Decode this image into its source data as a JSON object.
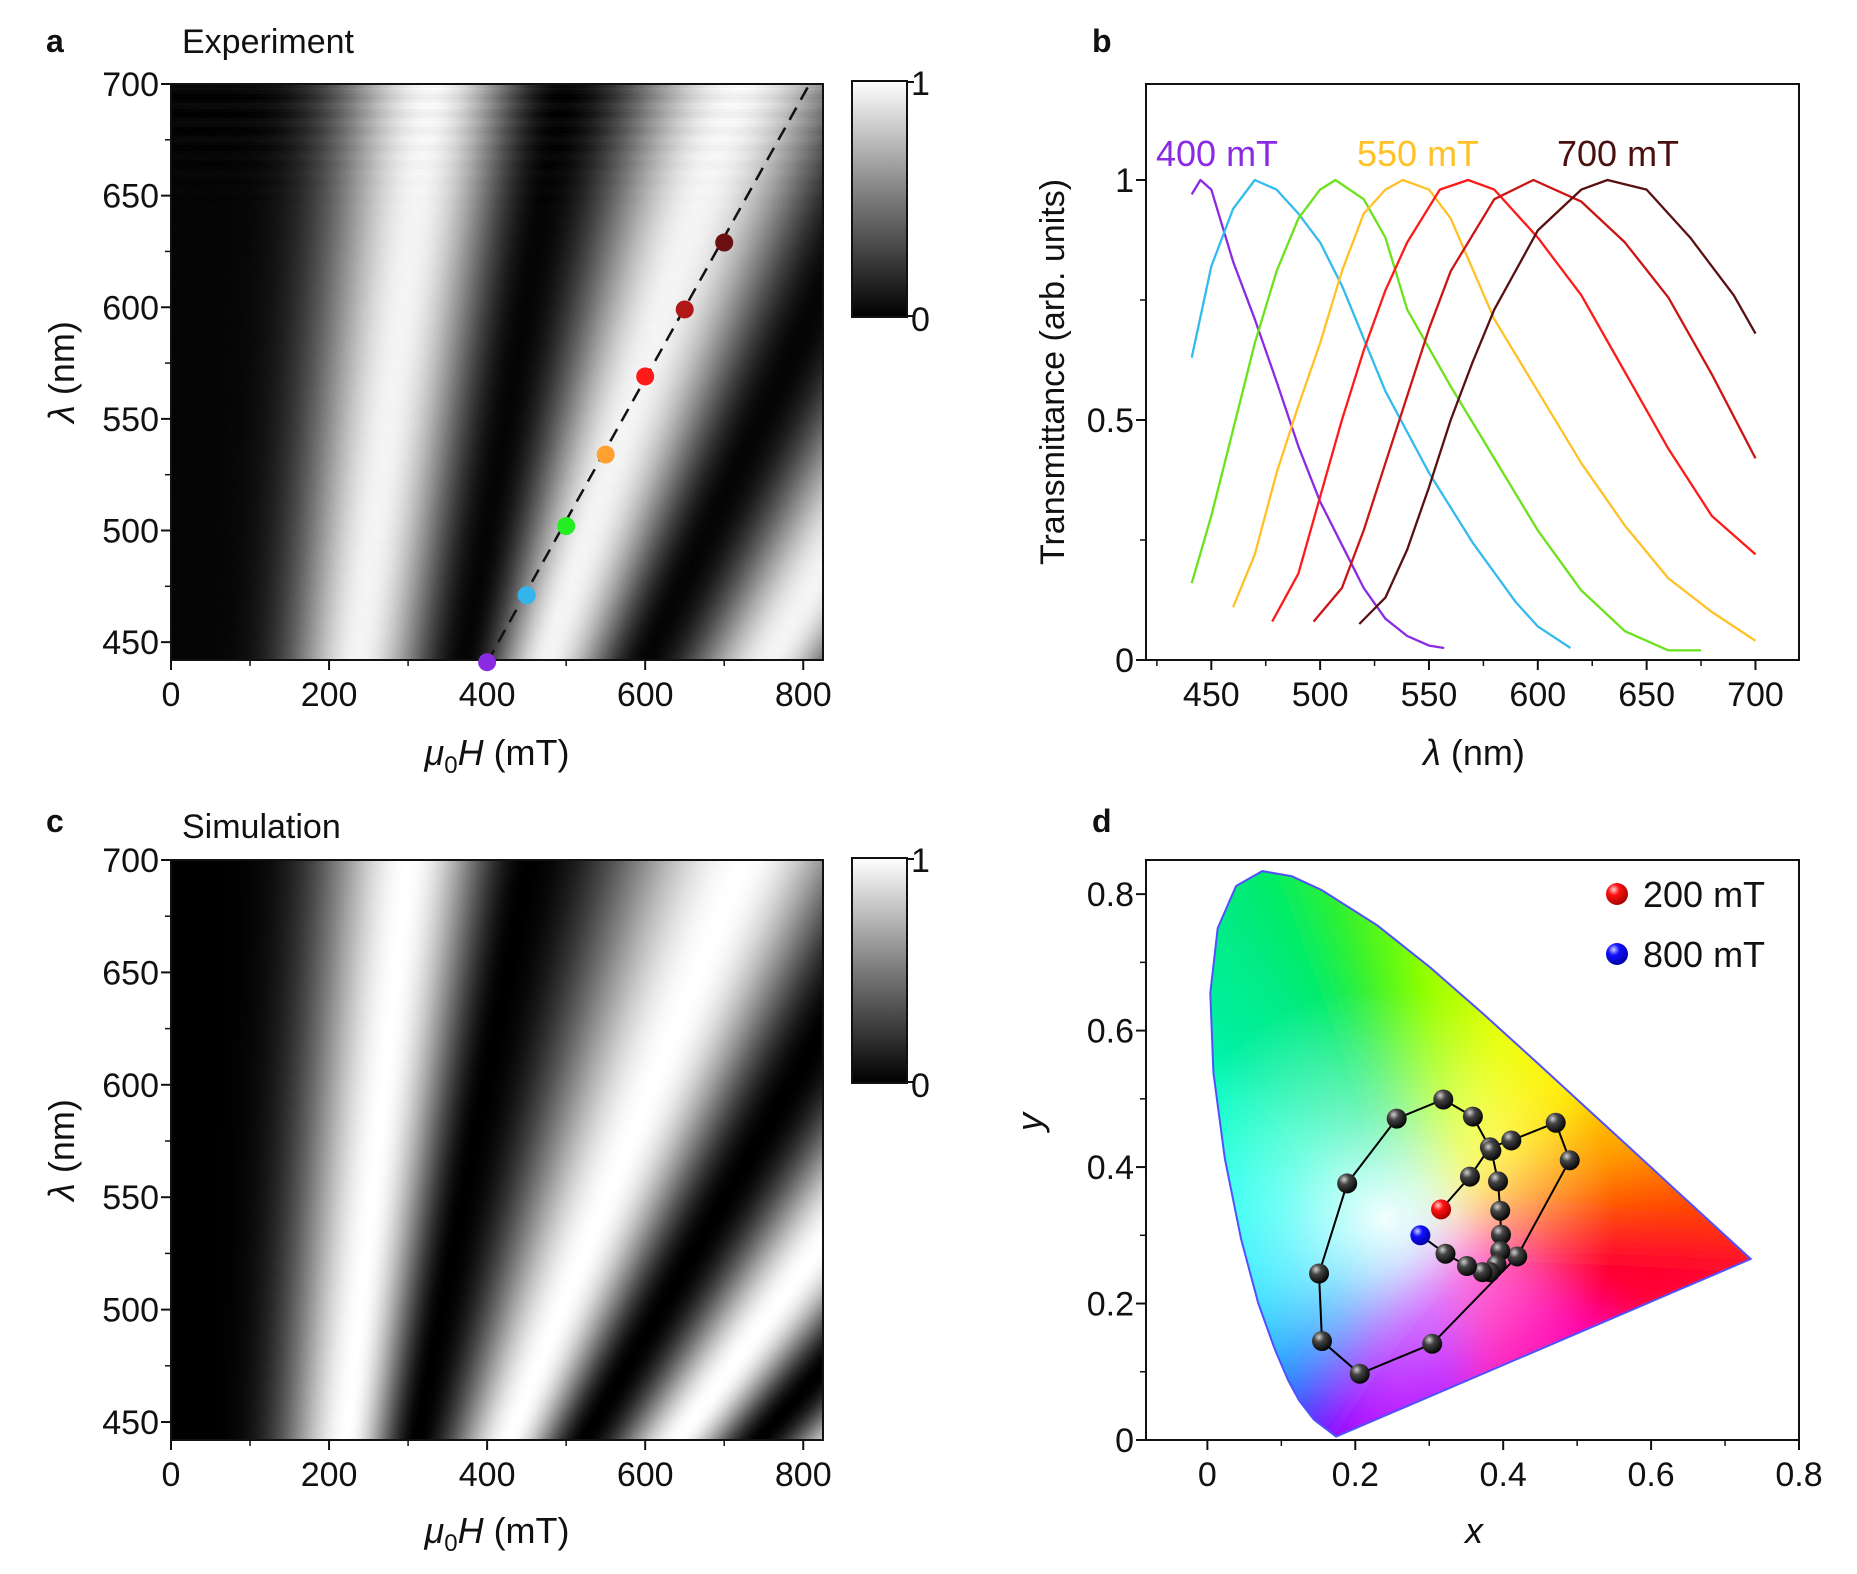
{
  "chart_data": [
    {
      "panel": "a",
      "type": "heatmap",
      "title": "Experiment",
      "xlabel": {
        "mu": "μ",
        "sub": "0",
        "var": "H",
        "unit": " (mT)"
      },
      "ylabel": {
        "var": "λ",
        "unit": " (nm)"
      },
      "xlim": [
        0,
        825
      ],
      "ylim": [
        442,
        700
      ],
      "xticks": [
        "0",
        "200",
        "400",
        "600",
        "800"
      ],
      "yticks": [
        "450",
        "500",
        "550",
        "600",
        "650",
        "700"
      ],
      "colormap": "grayscale",
      "colorbar": {
        "min": 0,
        "max": 1,
        "min_label": "0",
        "max_label": "1"
      },
      "dashed_line": {
        "from": [
          400,
          441
        ],
        "to": [
          808,
          700
        ]
      },
      "markers": [
        {
          "x": 400,
          "y": 441,
          "color": "#8a2be2"
        },
        {
          "x": 450,
          "y": 471,
          "color": "#33b4ea"
        },
        {
          "x": 500,
          "y": 502,
          "color": "#22ee22"
        },
        {
          "x": 550,
          "y": 534,
          "color": "#ffa030"
        },
        {
          "x": 600,
          "y": 569,
          "color": "#ff1a1a"
        },
        {
          "x": 650,
          "y": 599,
          "color": "#b01818"
        },
        {
          "x": 700,
          "y": 629,
          "color": "#6a1010"
        }
      ]
    },
    {
      "panel": "b",
      "type": "line",
      "xlabel": {
        "var": "λ",
        "unit": " (nm)"
      },
      "ylabel": "Transmittance (arb. units)",
      "xlim": [
        420,
        720
      ],
      "ylim": [
        0,
        1.2
      ],
      "xticks": [
        "450",
        "500",
        "550",
        "600",
        "650",
        "700"
      ],
      "yticks": [
        "0",
        "0.5",
        "1"
      ],
      "grid": false,
      "annotations": [
        {
          "text": "400 mT",
          "color": "#8a2be2"
        },
        {
          "text": "550 mT",
          "color": "#ffc125"
        },
        {
          "text": "700 mT",
          "color": "#4a1010"
        }
      ],
      "series": [
        {
          "color": "#8a2be2",
          "x": [
            441,
            445,
            450,
            460,
            470,
            480,
            490,
            500,
            510,
            520,
            530,
            540,
            550,
            557
          ],
          "y": [
            0.97,
            1.0,
            0.98,
            0.83,
            0.71,
            0.58,
            0.445,
            0.33,
            0.24,
            0.15,
            0.086,
            0.05,
            0.03,
            0.025
          ]
        },
        {
          "color": "#33bbee",
          "x": [
            441,
            450,
            460,
            470,
            480,
            490,
            500,
            510,
            530,
            550,
            570,
            590,
            600,
            615
          ],
          "y": [
            0.63,
            0.82,
            0.94,
            1.0,
            0.98,
            0.93,
            0.87,
            0.78,
            0.56,
            0.39,
            0.245,
            0.12,
            0.07,
            0.025
          ]
        },
        {
          "color": "#6be21b",
          "x": [
            441,
            450,
            460,
            470,
            480,
            490,
            500,
            507,
            520,
            530,
            540,
            560,
            580,
            600,
            620,
            640,
            660,
            675
          ],
          "y": [
            0.16,
            0.3,
            0.48,
            0.66,
            0.81,
            0.92,
            0.98,
            1.0,
            0.96,
            0.88,
            0.73,
            0.57,
            0.42,
            0.27,
            0.145,
            0.06,
            0.02,
            0.02
          ]
        },
        {
          "color": "#ffc125",
          "x": [
            460,
            470,
            480,
            490,
            500,
            510,
            520,
            530,
            538,
            550,
            560,
            580,
            600,
            620,
            640,
            660,
            680,
            700
          ],
          "y": [
            0.11,
            0.22,
            0.39,
            0.53,
            0.66,
            0.81,
            0.93,
            0.98,
            1.0,
            0.98,
            0.92,
            0.71,
            0.56,
            0.41,
            0.28,
            0.17,
            0.1,
            0.04
          ]
        },
        {
          "color": "#ff1a1a",
          "x": [
            478,
            490,
            500,
            510,
            520,
            530,
            540,
            555,
            568,
            580,
            600,
            620,
            640,
            660,
            680,
            700
          ],
          "y": [
            0.08,
            0.18,
            0.34,
            0.5,
            0.645,
            0.77,
            0.87,
            0.98,
            1.0,
            0.98,
            0.88,
            0.76,
            0.6,
            0.44,
            0.3,
            0.22
          ]
        },
        {
          "color": "#cc1414",
          "x": [
            497,
            510,
            520,
            530,
            540,
            550,
            560,
            580,
            598,
            620,
            640,
            660,
            680,
            700
          ],
          "y": [
            0.08,
            0.15,
            0.27,
            0.41,
            0.55,
            0.69,
            0.81,
            0.96,
            1.0,
            0.955,
            0.87,
            0.755,
            0.595,
            0.42
          ]
        },
        {
          "color": "#5a1010",
          "x": [
            518,
            530,
            540,
            550,
            560,
            570,
            580,
            600,
            620,
            632,
            650,
            670,
            690,
            700
          ],
          "y": [
            0.075,
            0.13,
            0.23,
            0.36,
            0.5,
            0.62,
            0.73,
            0.895,
            0.98,
            1.0,
            0.98,
            0.88,
            0.76,
            0.68
          ]
        }
      ]
    },
    {
      "panel": "c",
      "type": "heatmap",
      "title": "Simulation",
      "xlabel": {
        "mu": "μ",
        "sub": "0",
        "var": "H",
        "unit": " (mT)"
      },
      "ylabel": {
        "var": "λ",
        "unit": " (nm)"
      },
      "xlim": [
        0,
        825
      ],
      "ylim": [
        442,
        700
      ],
      "xticks": [
        "0",
        "200",
        "400",
        "600",
        "800"
      ],
      "yticks": [
        "450",
        "500",
        "550",
        "600",
        "650",
        "700"
      ],
      "colormap": "grayscale",
      "colorbar": {
        "min": 0,
        "max": 1,
        "min_label": "0",
        "max_label": "1"
      }
    },
    {
      "panel": "d",
      "type": "scatter",
      "xlabel": "x",
      "ylabel": "y",
      "xlim": [
        -0.083,
        0.8
      ],
      "ylim": [
        0,
        0.85
      ],
      "xticks": [
        "0",
        "0.2",
        "0.4",
        "0.6",
        "0.8"
      ],
      "yticks": [
        "0",
        "0.2",
        "0.4",
        "0.6",
        "0.8"
      ],
      "legend": {
        "position": "top-right",
        "entries": [
          {
            "label": "200 mT",
            "color": "#ff0000"
          },
          {
            "label": "800 mT",
            "color": "#0000ff"
          }
        ]
      },
      "start_point": {
        "x": 0.316,
        "y": 0.338,
        "label": "200 mT"
      },
      "end_point": {
        "x": 0.288,
        "y": 0.3,
        "label": "800 mT"
      },
      "path": {
        "x": [
          0.316,
          0.355,
          0.382,
          0.411,
          0.471,
          0.49,
          0.419,
          0.304,
          0.206,
          0.155,
          0.151,
          0.189,
          0.256,
          0.319,
          0.359,
          0.384,
          0.393,
          0.396,
          0.397,
          0.396,
          0.391,
          0.382,
          0.372,
          0.351,
          0.322,
          0.288
        ],
        "y": [
          0.338,
          0.386,
          0.429,
          0.439,
          0.465,
          0.41,
          0.269,
          0.141,
          0.097,
          0.145,
          0.244,
          0.376,
          0.471,
          0.499,
          0.474,
          0.424,
          0.379,
          0.336,
          0.301,
          0.277,
          0.257,
          0.246,
          0.246,
          0.255,
          0.273,
          0.3
        ]
      },
      "spectral_locus": {
        "x": [
          0.1741,
          0.144,
          0.1241,
          0.1096,
          0.0913,
          0.0687,
          0.0454,
          0.0235,
          0.0082,
          0.0039,
          0.0139,
          0.0389,
          0.0743,
          0.1142,
          0.1547,
          0.2296,
          0.3016,
          0.3731,
          0.4441,
          0.5125,
          0.5752,
          0.627,
          0.6915,
          0.7347
        ],
        "y": [
          0.005,
          0.0297,
          0.0578,
          0.0868,
          0.1327,
          0.2007,
          0.295,
          0.4127,
          0.5384,
          0.6548,
          0.7502,
          0.812,
          0.8338,
          0.8262,
          0.8059,
          0.7543,
          0.6923,
          0.6245,
          0.5547,
          0.4866,
          0.4242,
          0.3725,
          0.3083,
          0.2653
        ],
        "colors": [
          "#6a00ff",
          "#2a20ff",
          "#0050ff",
          "#0088ff",
          "#00b8ff",
          "#00e8ff",
          "#00ffee",
          "#00ffc8",
          "#00f0a0",
          "#00ee90",
          "#00ea80",
          "#00ea70",
          "#00ee60",
          "#10f040",
          "#30f020",
          "#70ff00",
          "#b8ff00",
          "#eeff00",
          "#ffee00",
          "#ffb000",
          "#ff7a00",
          "#ff4000",
          "#ff0a10",
          "#ff0030"
        ]
      }
    }
  ]
}
